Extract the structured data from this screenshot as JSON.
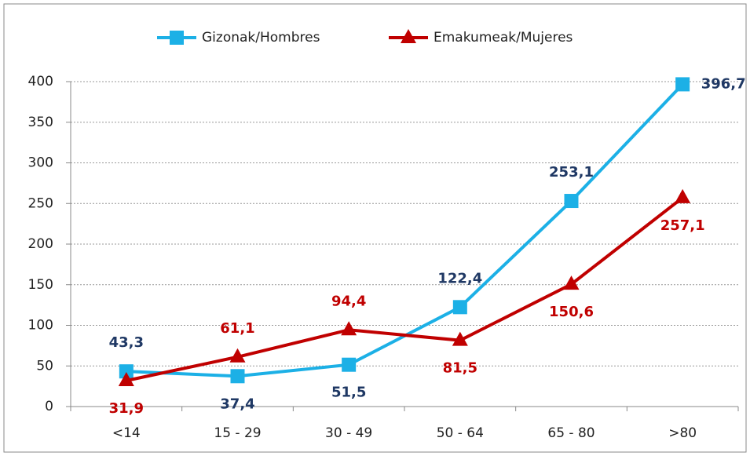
{
  "chart_data": {
    "type": "line",
    "categories": [
      "<14",
      "15 - 29",
      "30 - 49",
      "50 - 64",
      "65 - 80",
      ">80"
    ],
    "series": [
      {
        "name": "Gizonak/Hombres",
        "color": "#1cb0e6",
        "label_color": "#1f3864",
        "marker": "square",
        "values": [
          43.3,
          37.4,
          51.5,
          122.4,
          253.1,
          396.7
        ],
        "value_labels": [
          "43,3",
          "37,4",
          "51,5",
          "122,4",
          "253,1",
          "396,7"
        ]
      },
      {
        "name": "Emakumeak/Mujeres",
        "color": "#c00000",
        "label_color": "#c00000",
        "marker": "triangle",
        "values": [
          31.9,
          61.1,
          94.4,
          81.5,
          150.6,
          257.1
        ],
        "value_labels": [
          "31,9",
          "61,1",
          "94,4",
          "81,5",
          "150,6",
          "257,1"
        ]
      }
    ],
    "ylim": [
      0,
      400
    ],
    "yticks": [
      0,
      50,
      100,
      150,
      200,
      250,
      300,
      350,
      400
    ],
    "grid": true,
    "legend": "top"
  }
}
